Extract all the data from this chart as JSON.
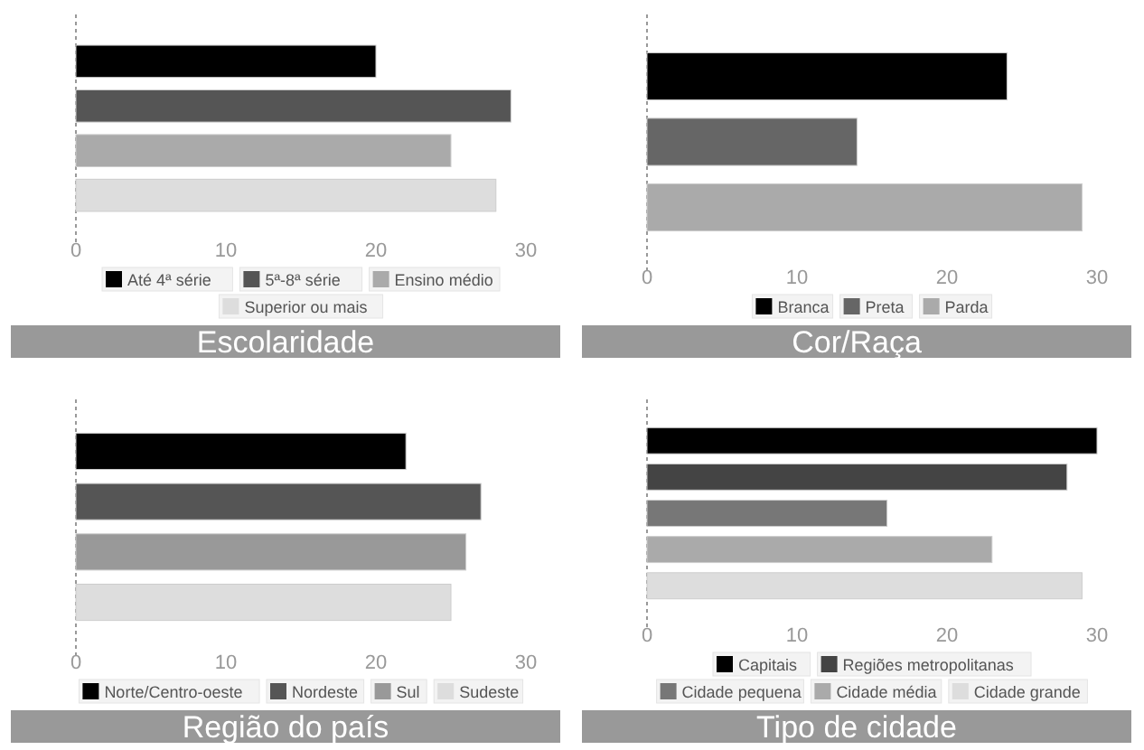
{
  "chart_data": [
    {
      "type": "bar",
      "orientation": "horizontal",
      "title": "Escolaridade",
      "categories": [
        null
      ],
      "xlim": [
        0,
        30
      ],
      "xticks": [
        0,
        10,
        20,
        30
      ],
      "legend": "bottom",
      "series": [
        {
          "name": "Até 4ª série",
          "color": "#000000",
          "values": [
            20
          ]
        },
        {
          "name": "5ª-8ª série",
          "color": "#555555",
          "values": [
            29
          ]
        },
        {
          "name": "Ensino médio",
          "color": "#aaaaaa",
          "values": [
            25
          ]
        },
        {
          "name": "Superior ou mais",
          "color": "#dddddd",
          "values": [
            28
          ]
        }
      ]
    },
    {
      "type": "bar",
      "orientation": "horizontal",
      "title": "Cor/Raça",
      "categories": [
        null
      ],
      "xlim": [
        0,
        30
      ],
      "xticks": [
        0,
        10,
        20,
        30
      ],
      "legend": "bottom",
      "series": [
        {
          "name": "Branca",
          "color": "#000000",
          "values": [
            24
          ]
        },
        {
          "name": "Preta",
          "color": "#666666",
          "values": [
            14
          ]
        },
        {
          "name": "Parda",
          "color": "#aaaaaa",
          "values": [
            29
          ]
        }
      ]
    },
    {
      "type": "bar",
      "orientation": "horizontal",
      "title": "Região do país",
      "categories": [
        null
      ],
      "xlim": [
        0,
        30
      ],
      "xticks": [
        0,
        10,
        20,
        30
      ],
      "legend": "bottom",
      "series": [
        {
          "name": "Norte/Centro-oeste",
          "color": "#000000",
          "values": [
            22
          ]
        },
        {
          "name": "Nordeste",
          "color": "#555555",
          "values": [
            27
          ]
        },
        {
          "name": "Sul",
          "color": "#999999",
          "values": [
            26
          ]
        },
        {
          "name": "Sudeste",
          "color": "#dddddd",
          "values": [
            25
          ]
        }
      ]
    },
    {
      "type": "bar",
      "orientation": "horizontal",
      "title": "Tipo de cidade",
      "categories": [
        null
      ],
      "xlim": [
        0,
        30
      ],
      "xticks": [
        0,
        10,
        20,
        30
      ],
      "legend": "bottom",
      "series": [
        {
          "name": "Capitais",
          "color": "#000000",
          "values": [
            30
          ]
        },
        {
          "name": "Regiões metropolitanas",
          "color": "#444444",
          "values": [
            28
          ]
        },
        {
          "name": "Cidade pequena",
          "color": "#777777",
          "values": [
            16
          ]
        },
        {
          "name": "Cidade média",
          "color": "#aaaaaa",
          "values": [
            23
          ]
        },
        {
          "name": "Cidade grande",
          "color": "#dddddd",
          "values": [
            29
          ]
        }
      ]
    }
  ]
}
